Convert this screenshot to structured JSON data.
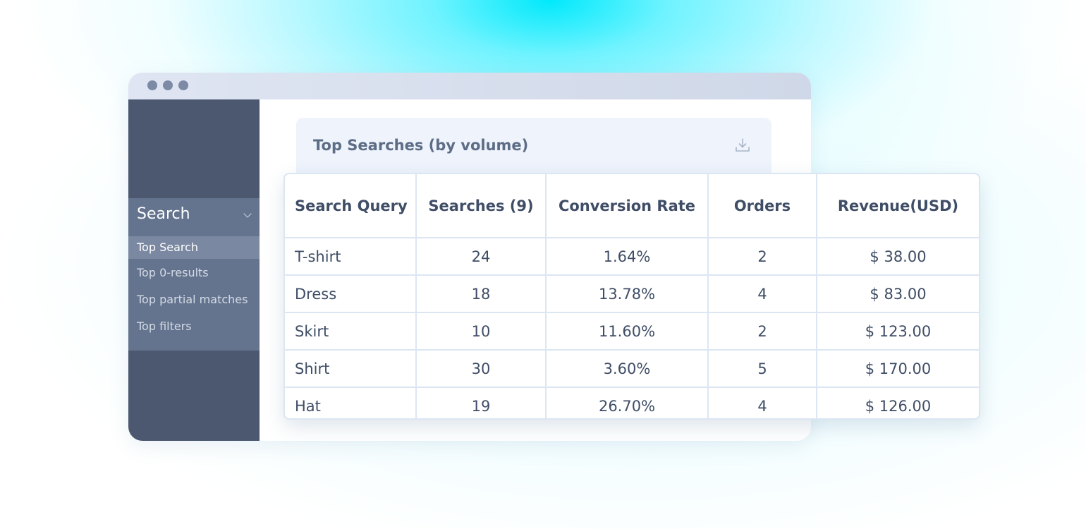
{
  "sidebar": {
    "section_label": "Search",
    "items": [
      {
        "label": "Top Search"
      },
      {
        "label": "Top 0-results"
      },
      {
        "label": "Top partial matches"
      },
      {
        "label": "Top filters"
      }
    ]
  },
  "panel": {
    "title": "Top Searches (by volume)"
  },
  "table": {
    "headers": [
      "Search Query",
      "Searches (9)",
      "Conversion Rate",
      "Orders",
      "Revenue(USD)"
    ],
    "rows": [
      [
        "T-shirt",
        "24",
        "1.64%",
        "2",
        "$ 38.00"
      ],
      [
        "Dress",
        "18",
        "13.78%",
        "4",
        "$ 83.00"
      ],
      [
        "Skirt",
        "10",
        "11.60%",
        "2",
        "$ 123.00"
      ],
      [
        "Shirt",
        "30",
        "3.60%",
        "5",
        "$ 170.00"
      ],
      [
        "Hat",
        "19",
        "26.70%",
        "4",
        "$ 126.00"
      ]
    ]
  },
  "icons": {
    "download": "download-icon",
    "chevron": "chevron-down-icon"
  },
  "colors": {
    "sidebar": "#4b5870",
    "sidebar_group": "#65748e",
    "active_item": "#7a88a1",
    "accent_glow": "#00e9fb"
  }
}
